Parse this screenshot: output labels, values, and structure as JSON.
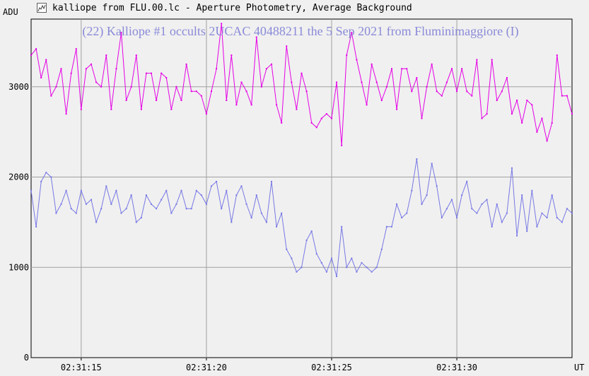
{
  "window": {
    "title": "kalliope from FLU.00.lc - Aperture Photometry, Average Background",
    "icon": "chart-icon"
  },
  "colors": {
    "background": "#f0f0f0",
    "grid": "#a0a0a0",
    "series_target": "#e600e6",
    "series_comparison": "#7878e6",
    "title": "#8a8ad8"
  },
  "chart_data": {
    "type": "line",
    "title": "(22) Kalliope #1 occults 2UCAC 40488211 the 5 Sep 2021 from Fluminimaggiore (I)",
    "ylabel": "ADU",
    "xlabel": "UT",
    "x_unit": "seconds after 02:31:12 UT",
    "ylim": [
      0,
      3750
    ],
    "xlim": [
      0,
      21.6
    ],
    "y_ticks": [
      0,
      1000,
      2000,
      3000
    ],
    "x_ticks": [
      {
        "x": 2.0,
        "label": "02:31:15"
      },
      {
        "x": 7.0,
        "label": "02:31:20"
      },
      {
        "x": 12.0,
        "label": "02:31:25"
      },
      {
        "x": 17.0,
        "label": "02:31:30"
      }
    ],
    "grid": true,
    "series": [
      {
        "name": "",
        "color": "#e600e6",
        "x": [
          0.0,
          0.2,
          0.4,
          0.6,
          0.8,
          1.0,
          1.2,
          1.4,
          1.6,
          1.8,
          2.0,
          2.2,
          2.4,
          2.6,
          2.8,
          3.0,
          3.2,
          3.4,
          3.6,
          3.8,
          4.0,
          4.2,
          4.4,
          4.6,
          4.8,
          5.0,
          5.2,
          5.4,
          5.6,
          5.8,
          6.0,
          6.2,
          6.4,
          6.6,
          6.8,
          7.0,
          7.2,
          7.4,
          7.6,
          7.8,
          8.0,
          8.2,
          8.4,
          8.6,
          8.8,
          9.0,
          9.2,
          9.4,
          9.6,
          9.8,
          10.0,
          10.2,
          10.4,
          10.6,
          10.8,
          11.0,
          11.2,
          11.4,
          11.6,
          11.8,
          12.0,
          12.2,
          12.4,
          12.6,
          12.8,
          13.0,
          13.2,
          13.4,
          13.6,
          13.8,
          14.0,
          14.2,
          14.4,
          14.6,
          14.8,
          15.0,
          15.2,
          15.4,
          15.6,
          15.8,
          16.0,
          16.2,
          16.4,
          16.6,
          16.8,
          17.0,
          17.2,
          17.4,
          17.6,
          17.8,
          18.0,
          18.2,
          18.4,
          18.6,
          18.8,
          19.0,
          19.2,
          19.4,
          19.6,
          19.8,
          20.0,
          20.2,
          20.4,
          20.6,
          20.8,
          21.0,
          21.2,
          21.4,
          21.6
        ],
        "values": [
          3350,
          3420,
          3100,
          3300,
          2900,
          3000,
          3200,
          2700,
          3150,
          3420,
          2750,
          3200,
          3250,
          3050,
          3000,
          3350,
          2750,
          3200,
          3600,
          2850,
          3000,
          3350,
          2750,
          3150,
          3150,
          2850,
          3150,
          3100,
          2750,
          3000,
          2850,
          3250,
          2950,
          2950,
          2900,
          2700,
          2950,
          3200,
          3700,
          2850,
          3350,
          2800,
          3050,
          2950,
          2800,
          3550,
          3000,
          3200,
          3250,
          2800,
          2600,
          3450,
          3050,
          2750,
          3150,
          2950,
          2600,
          2550,
          2650,
          2700,
          2650,
          3050,
          2350,
          3350,
          3600,
          3300,
          3050,
          2800,
          3250,
          3050,
          2850,
          3000,
          3200,
          2750,
          3200,
          3200,
          2950,
          3100,
          2650,
          3000,
          3250,
          2950,
          2900,
          3050,
          3200,
          2950,
          3200,
          2950,
          2900,
          3300,
          2650,
          2700,
          3300,
          2850,
          2950,
          3100,
          2700,
          2850,
          2600,
          2850,
          2800,
          2500,
          2650,
          2400,
          2600,
          3350,
          2900,
          2900,
          2700
        ]
      },
      {
        "name": "",
        "color": "#7878e6",
        "x": [
          0.0,
          0.2,
          0.4,
          0.6,
          0.8,
          1.0,
          1.2,
          1.4,
          1.6,
          1.8,
          2.0,
          2.2,
          2.4,
          2.6,
          2.8,
          3.0,
          3.2,
          3.4,
          3.6,
          3.8,
          4.0,
          4.2,
          4.4,
          4.6,
          4.8,
          5.0,
          5.2,
          5.4,
          5.6,
          5.8,
          6.0,
          6.2,
          6.4,
          6.6,
          6.8,
          7.0,
          7.2,
          7.4,
          7.6,
          7.8,
          8.0,
          8.2,
          8.4,
          8.6,
          8.8,
          9.0,
          9.2,
          9.4,
          9.6,
          9.8,
          10.0,
          10.2,
          10.4,
          10.6,
          10.8,
          11.0,
          11.2,
          11.4,
          11.6,
          11.8,
          12.0,
          12.2,
          12.4,
          12.6,
          12.8,
          13.0,
          13.2,
          13.4,
          13.6,
          13.8,
          14.0,
          14.2,
          14.4,
          14.6,
          14.8,
          15.0,
          15.2,
          15.4,
          15.6,
          15.8,
          16.0,
          16.2,
          16.4,
          16.6,
          16.8,
          17.0,
          17.2,
          17.4,
          17.6,
          17.8,
          18.0,
          18.2,
          18.4,
          18.6,
          18.8,
          19.0,
          19.2,
          19.4,
          19.6,
          19.8,
          20.0,
          20.2,
          20.4,
          20.6,
          20.8,
          21.0,
          21.2,
          21.4,
          21.6
        ],
        "values": [
          1850,
          1450,
          1950,
          2050,
          2000,
          1600,
          1700,
          1850,
          1650,
          1600,
          1850,
          1700,
          1750,
          1500,
          1650,
          1900,
          1700,
          1850,
          1600,
          1650,
          1800,
          1500,
          1550,
          1800,
          1700,
          1650,
          1750,
          1850,
          1600,
          1700,
          1850,
          1650,
          1650,
          1850,
          1800,
          1700,
          1900,
          1950,
          1650,
          1850,
          1500,
          1800,
          1900,
          1700,
          1550,
          1800,
          1600,
          1500,
          1950,
          1450,
          1600,
          1200,
          1100,
          950,
          1000,
          1300,
          1400,
          1150,
          1050,
          950,
          1100,
          900,
          1450,
          1000,
          1100,
          950,
          1050,
          1000,
          950,
          1000,
          1200,
          1450,
          1450,
          1700,
          1550,
          1600,
          1850,
          2200,
          1700,
          1800,
          2150,
          1900,
          1550,
          1650,
          1750,
          1550,
          1800,
          1950,
          1650,
          1600,
          1700,
          1750,
          1450,
          1700,
          1500,
          1600,
          2100,
          1350,
          1800,
          1400,
          1850,
          1450,
          1600,
          1550,
          1800,
          1550,
          1500,
          1650,
          1600
        ]
      }
    ]
  }
}
